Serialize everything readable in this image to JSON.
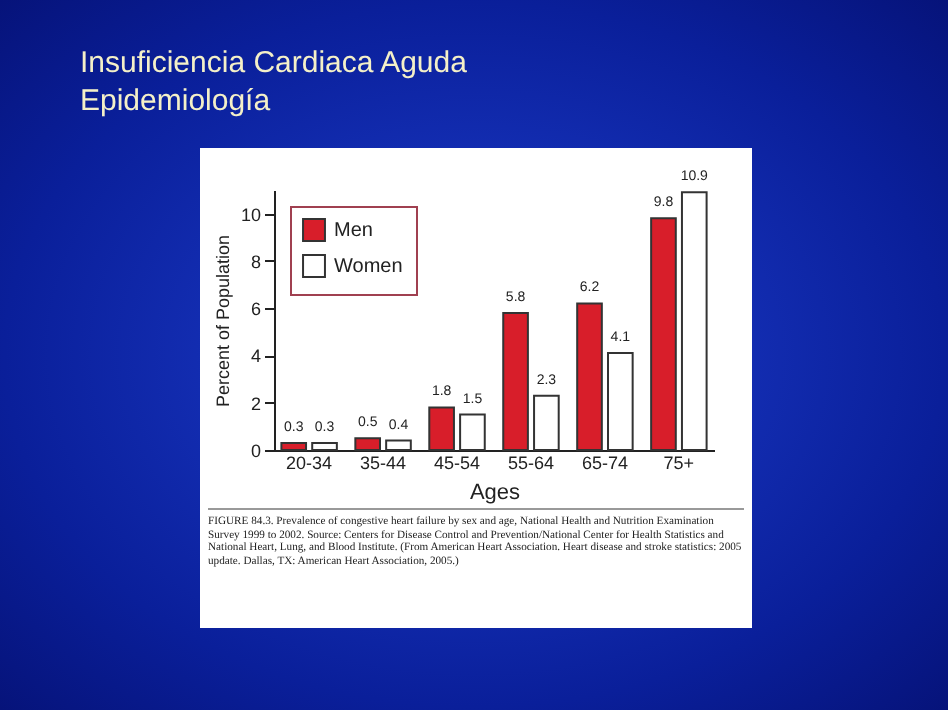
{
  "chart_data": {
    "type": "bar",
    "title": "Insuficiencia Cardiaca Aguda",
    "subtitle": "Epidemiología",
    "xlabel": "Ages",
    "ylabel": "Percent of Population",
    "categories": [
      "20-34",
      "35-44",
      "45-54",
      "55-64",
      "65-74",
      "75+"
    ],
    "series": [
      {
        "name": "Men",
        "color": "#d81e2a",
        "values": [
          0.3,
          0.5,
          1.8,
          5.8,
          6.2,
          9.8
        ]
      },
      {
        "name": "Women",
        "color": "#ffffff",
        "values": [
          0.3,
          0.4,
          1.5,
          2.3,
          4.1,
          10.9
        ]
      }
    ],
    "ylim": [
      0,
      11
    ],
    "yticks": [
      0,
      2,
      4,
      6,
      8,
      10
    ],
    "data_labels": true,
    "legend": "top left",
    "grid": false,
    "annotations": [
      "FIGURE 84.3. Prevalence of congestive heart failure by sex and age, National Health and Nutrition Examination Survey 1999 to 2002. Source: Centers for Disease Control and Prevention/National Center for Health Statistics and National Heart, Lung, and Blood Institute. (From American Heart Association. Heart disease and stroke statistics: 2005 update. Dallas, TX: American Heart Association, 2005.)"
    ]
  }
}
